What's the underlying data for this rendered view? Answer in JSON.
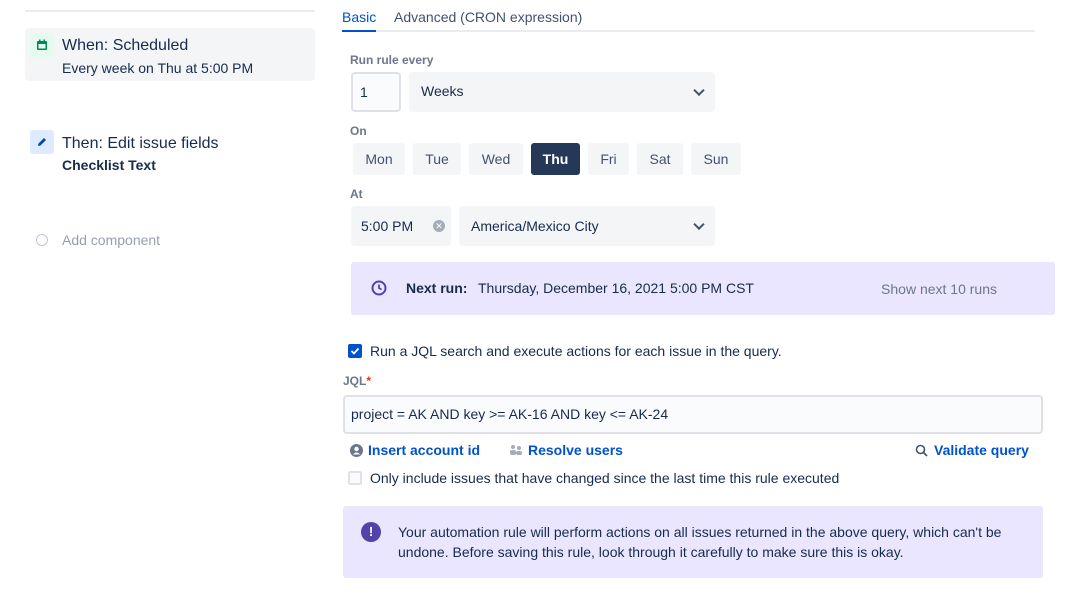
{
  "sidebar": {
    "trigger": {
      "title": "When: Scheduled",
      "subtitle": "Every week on Thu at 5:00 PM",
      "icon": "calendar-icon"
    },
    "action": {
      "title": "Then: Edit issue fields",
      "subtitle": "Checklist Text",
      "icon": "pencil-icon"
    },
    "add_component": "Add component"
  },
  "tabs": [
    {
      "label": "Basic",
      "active": true
    },
    {
      "label": "Advanced (CRON expression)",
      "active": false
    }
  ],
  "schedule": {
    "run_every_label": "Run rule every",
    "interval_value": "1",
    "interval_unit": "Weeks",
    "on_label": "On",
    "days": [
      {
        "label": "Mon",
        "selected": false
      },
      {
        "label": "Tue",
        "selected": false
      },
      {
        "label": "Wed",
        "selected": false
      },
      {
        "label": "Thu",
        "selected": true
      },
      {
        "label": "Fri",
        "selected": false
      },
      {
        "label": "Sat",
        "selected": false
      },
      {
        "label": "Sun",
        "selected": false
      }
    ],
    "at_label": "At",
    "time": "5:00 PM",
    "timezone": "America/Mexico City"
  },
  "next_run": {
    "label": "Next run:",
    "value": "Thursday, December 16, 2021 5:00 PM CST",
    "show_next": "Show next 10 runs"
  },
  "jql": {
    "checkbox_label": "Run a JQL search and execute actions for each issue in the query.",
    "checked": true,
    "label": "JQL",
    "required": "*",
    "value": "project = AK AND  key >= AK-16 AND key <= AK-24",
    "insert_account": "Insert account id",
    "resolve_users": "Resolve users",
    "validate": "Validate query",
    "only_changed_label": "Only include issues that have changed since the last time this rule executed",
    "only_changed": false
  },
  "warning": {
    "text": "Your automation rule will perform actions on all issues returned in the above query, which can't be undone. Before saving this rule, look through it carefully to make sure this is okay."
  },
  "colors": {
    "accent": "#0052cc",
    "selected_day": "#253858",
    "next_run_bg": "#eae6ff",
    "warning_icon": "#5243aa"
  }
}
